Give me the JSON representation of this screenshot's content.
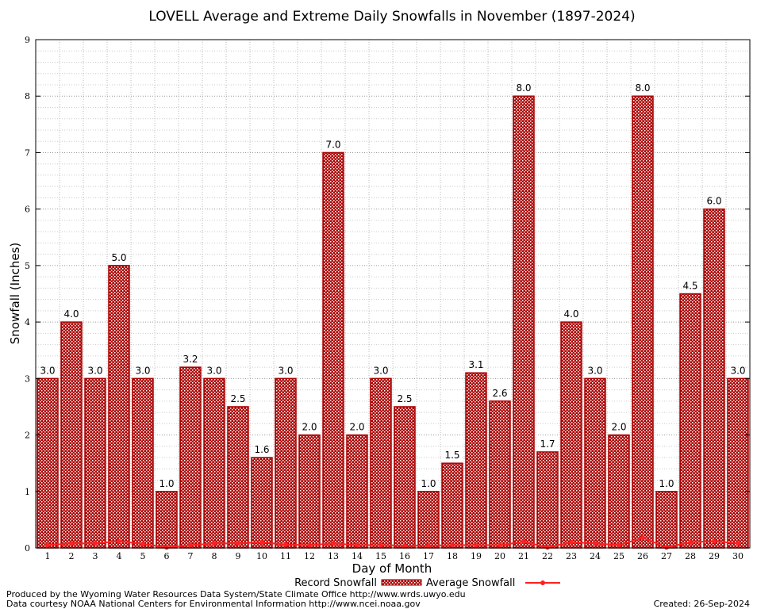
{
  "chart_data": {
    "type": "bar",
    "title": "LOVELL Average and Extreme Daily Snowfalls in November (1897-2024)",
    "xlabel": "Day of Month",
    "ylabel": "Snowfall (Inches)",
    "ylim": [
      0,
      9
    ],
    "yticks": [
      0,
      1,
      2,
      3,
      4,
      5,
      6,
      7,
      8,
      9
    ],
    "grid": true,
    "legend_placement": "bottom",
    "categories": [
      "1",
      "2",
      "3",
      "4",
      "5",
      "6",
      "7",
      "8",
      "9",
      "10",
      "11",
      "12",
      "13",
      "14",
      "15",
      "16",
      "17",
      "18",
      "19",
      "20",
      "21",
      "22",
      "23",
      "24",
      "25",
      "26",
      "27",
      "28",
      "29",
      "30"
    ],
    "series": [
      {
        "name": "Record Snowfall",
        "type": "bar",
        "color": "#aa0000",
        "values": [
          3.0,
          4.0,
          3.0,
          5.0,
          3.0,
          1.0,
          3.2,
          3.0,
          2.5,
          1.6,
          3.0,
          2.0,
          7.0,
          2.0,
          3.0,
          2.5,
          1.0,
          1.5,
          3.1,
          2.6,
          8.0,
          1.7,
          4.0,
          3.0,
          2.0,
          8.0,
          1.0,
          4.5,
          6.0,
          3.0
        ],
        "labels": [
          "3.0",
          "4.0",
          "3.0",
          "5.0",
          "3.0",
          "1.0",
          "3.2",
          "3.0",
          "2.5",
          "1.6",
          "3.0",
          "2.0",
          "7.0",
          "2.0",
          "3.0",
          "2.5",
          "1.0",
          "1.5",
          "3.1",
          "2.6",
          "8.0",
          "1.7",
          "4.0",
          "3.0",
          "2.0",
          "8.0",
          "1.0",
          "4.5",
          "6.0",
          "3.0"
        ]
      },
      {
        "name": "Average Snowfall",
        "type": "line",
        "color": "#ff2020",
        "values": [
          0.05,
          0.08,
          0.08,
          0.12,
          0.07,
          0.01,
          0.05,
          0.08,
          0.08,
          0.1,
          0.06,
          0.05,
          0.08,
          0.05,
          0.05,
          0.04,
          0.04,
          0.05,
          0.05,
          0.05,
          0.11,
          0.01,
          0.1,
          0.08,
          0.05,
          0.18,
          0.01,
          0.1,
          0.12,
          0.08
        ]
      }
    ]
  },
  "footer": {
    "produced": "Produced by the Wyoming Water Resources Data System/State Climate Office http://www.wrds.uwyo.edu",
    "courtesy": "Data courtesy NOAA National Centers for Environmental Information http://www.ncei.noaa.gov",
    "created": "Created:  26-Sep-2024"
  }
}
